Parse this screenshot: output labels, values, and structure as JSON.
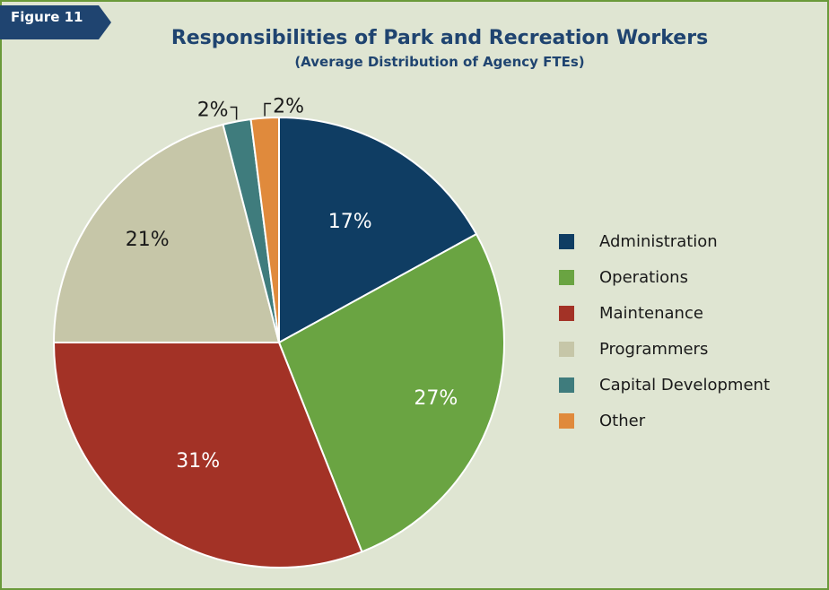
{
  "figure_label": "Figure 11",
  "chart_data": {
    "type": "pie",
    "title": "Responsibilities of Park and Recreation Workers",
    "subtitle": "(Average Distribution of Agency FTEs)",
    "slices": [
      {
        "name": "Administration",
        "value": 17,
        "label": "17%",
        "color": "#0f3d63",
        "label_color": "#ffffff"
      },
      {
        "name": "Operations",
        "value": 27,
        "label": "27%",
        "color": "#6aa442",
        "label_color": "#ffffff"
      },
      {
        "name": "Maintenance",
        "value": 31,
        "label": "31%",
        "color": "#a33226",
        "label_color": "#ffffff"
      },
      {
        "name": "Programmers",
        "value": 21,
        "label": "21%",
        "color": "#c6c6a8",
        "label_color": "#1a1a1a"
      },
      {
        "name": "Capital Development",
        "value": 2,
        "label": "2%",
        "color": "#3f7c7d",
        "label_color": "#1a1a1a"
      },
      {
        "name": "Other",
        "value": 2,
        "label": "2%",
        "color": "#e08a3c",
        "label_color": "#1a1a1a"
      }
    ],
    "legend_position": "right"
  }
}
